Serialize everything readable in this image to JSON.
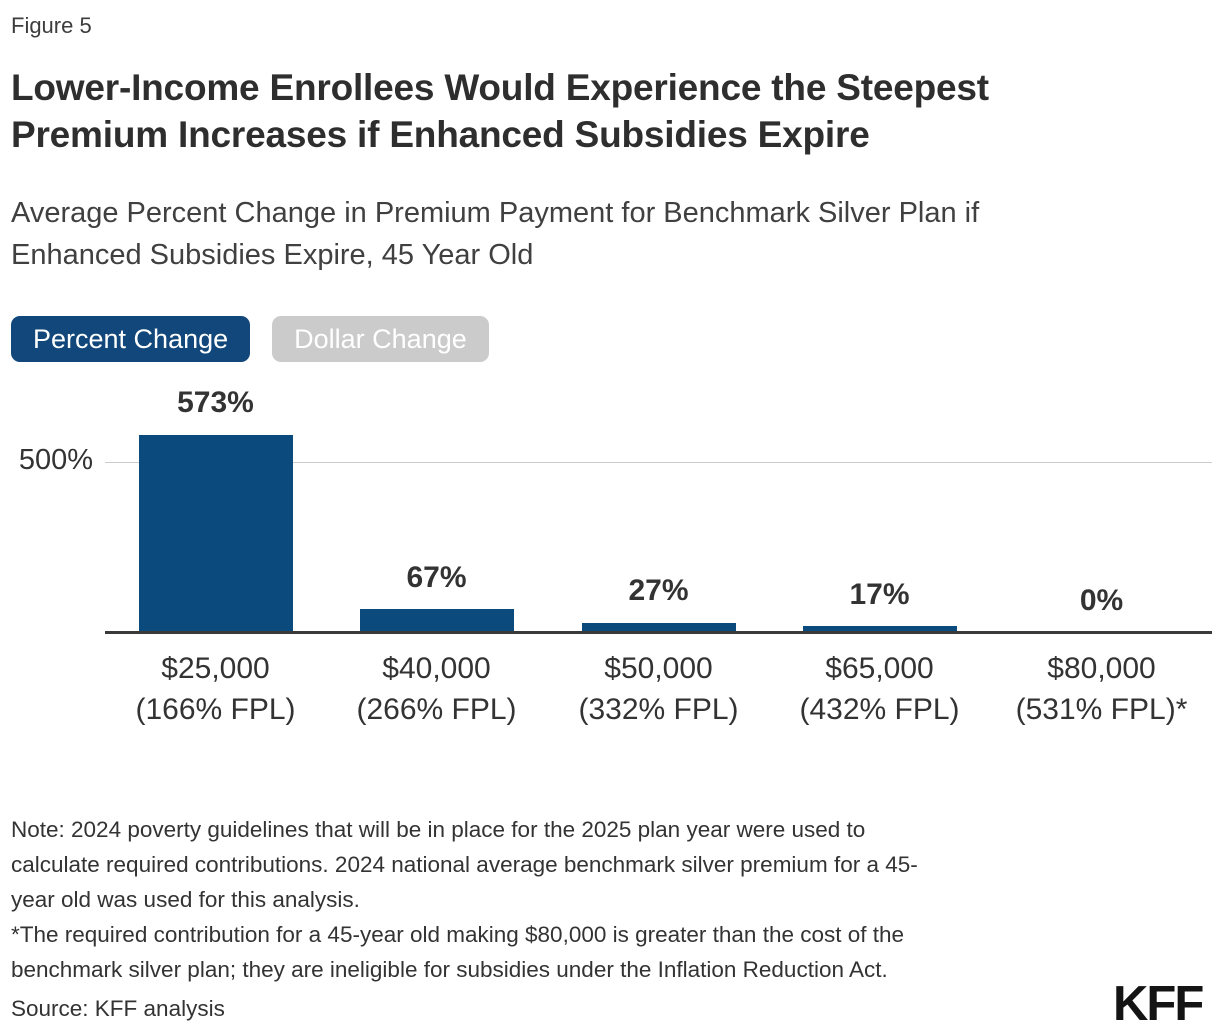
{
  "figure_label": "Figure 5",
  "title_lines": [
    "Lower-Income Enrollees Would Experience the Steepest",
    "Premium Increases if Enhanced Subsidies Expire"
  ],
  "subtitle_lines": [
    "Average Percent Change in Premium Payment for Benchmark Silver Plan if",
    "Enhanced Subsidies Expire, 45 Year Old"
  ],
  "toggle": {
    "percent_label": "Percent Change",
    "dollar_label": "Dollar Change",
    "selected": "Percent Change"
  },
  "colors": {
    "bar": "#0b4a7d",
    "active_button_bg": "#11477a",
    "inactive_button_bg": "#cbcbcb",
    "gridline": "#cccccc",
    "axis": "#3a3a3a",
    "text": "#333333"
  },
  "chart_data": {
    "type": "bar",
    "title": "Average Percent Change in Premium Payment for Benchmark Silver Plan if Enhanced Subsidies Expire, 45 Year Old",
    "categories": [
      {
        "income": "$25,000",
        "fpl": "(166% FPL)"
      },
      {
        "income": "$40,000",
        "fpl": "(266% FPL)"
      },
      {
        "income": "$50,000",
        "fpl": "(332% FPL)"
      },
      {
        "income": "$65,000",
        "fpl": "(432% FPL)"
      },
      {
        "income": "$80,000",
        "fpl": "(531% FPL)*"
      }
    ],
    "values": [
      573,
      67,
      27,
      17,
      0
    ],
    "value_labels": [
      "573%",
      "67%",
      "27%",
      "17%",
      "0%"
    ],
    "xlabel": "",
    "ylabel": "",
    "y_axis": {
      "tick_label": "500%",
      "tick_value": 500,
      "ylim": [
        0,
        640
      ],
      "gridlines": [
        500
      ]
    },
    "legend": "none",
    "grid": "single horizontal gridline at 500%"
  },
  "notes_lines": [
    "Note: 2024 poverty guidelines that will be in place for the 2025 plan year were used to",
    "calculate required contributions. 2024 national average benchmark silver premium for a 45-",
    "year old was used for this analysis.",
    "*The required contribution for a 45-year old making $80,000 is greater than the cost of the",
    "benchmark silver plan; they are ineligible for subsidies under the Inflation Reduction Act."
  ],
  "source": "Source: KFF analysis",
  "logo": "KFF"
}
